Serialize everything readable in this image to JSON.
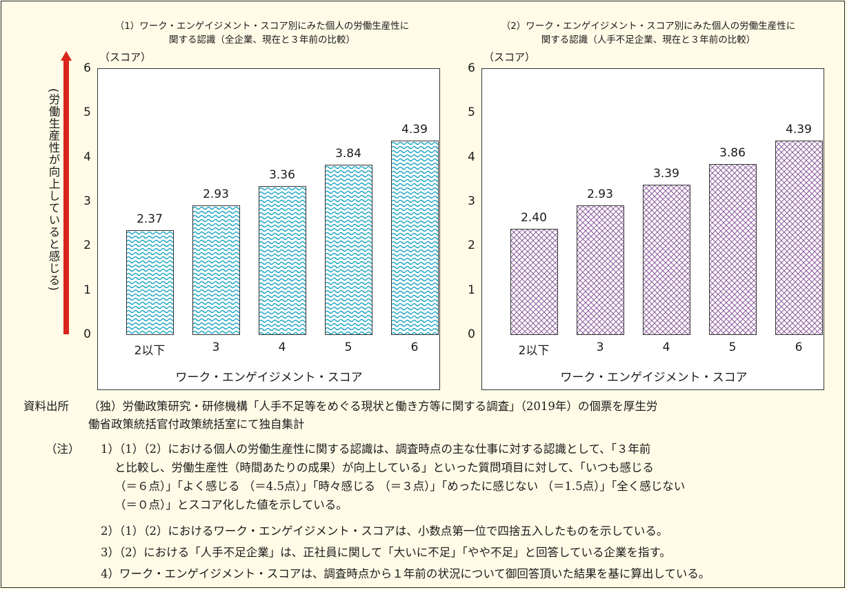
{
  "chart_data": [
    {
      "type": "bar",
      "title": "（1）ワーク・エンゲイジメント・スコア別にみた個人の労働生産性に\n関する認識（全企業、現在と３年前の比較）",
      "ylabel": "(労働生産性が向上していると感じる)",
      "unit": "（スコア）",
      "xlabel": "ワーク・エンゲイジメント・スコア",
      "categories": [
        "2以下",
        "3",
        "4",
        "5",
        "6"
      ],
      "values": [
        2.37,
        2.93,
        3.36,
        3.84,
        4.39
      ],
      "value_labels": [
        "2.37",
        "2.93",
        "3.36",
        "3.84",
        "4.39"
      ],
      "ylim": [
        0,
        6
      ],
      "yticks": [
        "0",
        "1",
        "2",
        "3",
        "4",
        "5",
        "6"
      ],
      "pattern": "wave",
      "color": "#1ea5c4"
    },
    {
      "type": "bar",
      "title": "（2）ワーク・エンゲイジメント・スコア別にみた個人の労働生産性に\n関する認識（人手不足企業、現在と３年前の比較）",
      "unit": "（スコア）",
      "xlabel": "ワーク・エンゲイジメント・スコア",
      "categories": [
        "2以下",
        "3",
        "4",
        "5",
        "6"
      ],
      "values": [
        2.4,
        2.93,
        3.39,
        3.86,
        4.39
      ],
      "value_labels": [
        "2.40",
        "2.93",
        "3.39",
        "3.86",
        "4.39"
      ],
      "ylim": [
        0,
        6
      ],
      "yticks": [
        "0",
        "1",
        "2",
        "3",
        "4",
        "5",
        "6"
      ],
      "pattern": "crosshatch",
      "color": "#8a5a9a"
    }
  ],
  "arrow_color": "#d9241c",
  "notes": {
    "source_head": "資料出所",
    "source_line1": "（独）労働政策研究・研修機構「人手不足等をめぐる現状と働き方等に関する調査」（2019年）の個票を厚生労",
    "source_line2": "働省政策統括官付政策統括室にて独自集計",
    "note_head": "（注）",
    "note1_line1": "1）（1）（2）における個人の労働生産性に関する認識は、調査時点の主な仕事に対する認識として、「３年前",
    "note1_line2": "と比較し、労働生産性（時間あたりの成果）が向上している」といった質問項目に対して、「いつも感じる",
    "note1_line3": "（＝６点）」「よく感じる （＝4.5点）」「時々感じる （＝３点）」「めったに感じない （＝1.5点）」「全く感じない",
    "note1_line4": "（＝０点）」とスコア化した値を示している。",
    "note2": "2）（1）（2）におけるワーク・エンゲイジメント・スコアは、小数点第一位で四捨五入したものを示している。",
    "note3": "3）（2）における「人手不足企業」は、正社員に関して「大いに不足」「やや不足」と回答している企業を指す。",
    "note4": "4）ワーク・エンゲイジメント・スコアは、調査時点から１年前の状況について御回答頂いた結果を基に算出している。"
  }
}
